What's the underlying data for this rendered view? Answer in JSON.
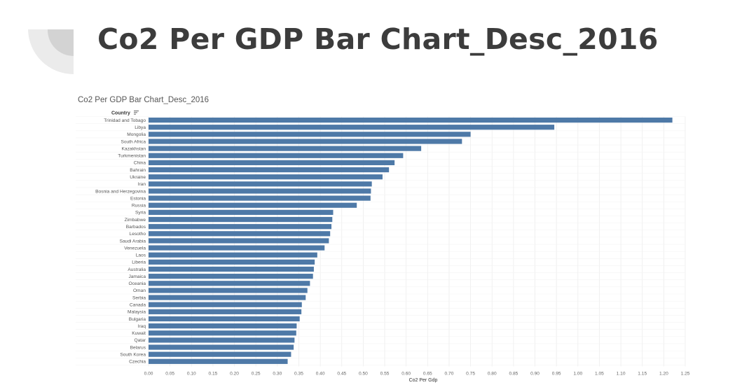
{
  "slide": {
    "title": "Co2 Per GDP Bar Chart_Desc_2016"
  },
  "chart_data": {
    "type": "bar",
    "orientation": "horizontal",
    "title": "Co2 Per GDP Bar Chart_Desc_2016",
    "category_header": "Country",
    "xlabel": "Co2 Per Gdp",
    "xlim": [
      0,
      1.25
    ],
    "xticks": [
      "0.00",
      "0.05",
      "0.10",
      "0.15",
      "0.20",
      "0.25",
      "0.30",
      "0.35",
      "0.40",
      "0.45",
      "0.50",
      "0.55",
      "0.60",
      "0.65",
      "0.70",
      "0.75",
      "0.80",
      "0.85",
      "0.90",
      "0.95",
      "1.00",
      "1.05",
      "1.10",
      "1.15",
      "1.20",
      "1.25"
    ],
    "grid": true,
    "bar_color": "#4e79a7",
    "categories": [
      "Trinidad and Tobago",
      "Libya",
      "Mongolia",
      "South Africa",
      "Kazakhstan",
      "Turkmenistan",
      "China",
      "Bahrain",
      "Ukraine",
      "Iran",
      "Bosnia and Herzegovina",
      "Estonia",
      "Russia",
      "Syria",
      "Zimbabwe",
      "Barbados",
      "Lesotho",
      "Saudi Arabia",
      "Venezuela",
      "Laos",
      "Liberia",
      "Australia",
      "Jamaica",
      "Oceania",
      "Oman",
      "Serbia",
      "Canada",
      "Malaysia",
      "Bulgaria",
      "Iraq",
      "Kuwait",
      "Qatar",
      "Belarus",
      "South Korea",
      "Czechia"
    ],
    "values": [
      1.22,
      0.945,
      0.75,
      0.73,
      0.635,
      0.593,
      0.573,
      0.56,
      0.545,
      0.52,
      0.518,
      0.517,
      0.485,
      0.43,
      0.428,
      0.426,
      0.423,
      0.42,
      0.41,
      0.393,
      0.387,
      0.385,
      0.383,
      0.376,
      0.37,
      0.366,
      0.357,
      0.356,
      0.352,
      0.345,
      0.344,
      0.34,
      0.338,
      0.332,
      0.324
    ]
  }
}
